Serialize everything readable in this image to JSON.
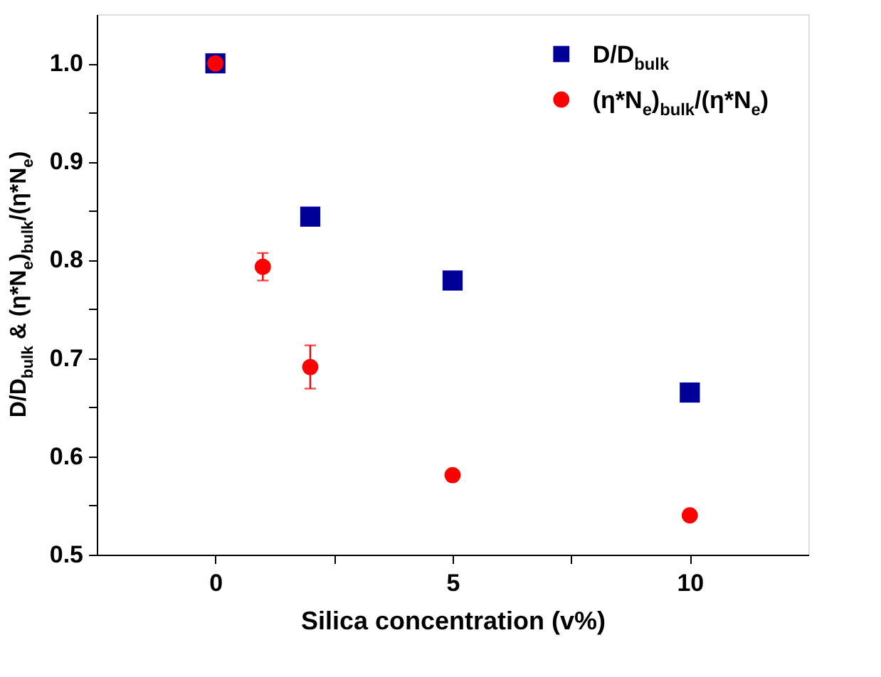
{
  "chart_data": {
    "type": "scatter",
    "xlabel": "Silica concentration (v%)",
    "ylabel": "D/D$_{bulk}$ & (η*N$_{e}$)$_{bulk}$/(η*N$_{e}$)",
    "xlim": [
      -2.5,
      12.5
    ],
    "xticks": [
      0,
      {
        "value": 2.5,
        "label": null
      },
      5,
      {
        "value": 7.5,
        "label": null
      },
      10
    ],
    "ylim": [
      0.5,
      1.05
    ],
    "yticks": [
      0.5,
      {
        "value": 0.55,
        "label": null
      },
      0.6,
      {
        "value": 0.65,
        "label": null
      },
      0.7,
      {
        "value": 0.75,
        "label": null
      },
      0.8,
      {
        "value": 0.85,
        "label": null
      },
      0.9,
      {
        "value": 0.95,
        "label": null
      },
      {
        "value": 1.0,
        "label": "1.0"
      }
    ],
    "grid": false,
    "legend": "top right",
    "series": [
      {
        "name": "D/D$_{bulk}$",
        "color": "#000099",
        "marker": "square",
        "x": [
          0,
          2,
          5,
          10
        ],
        "values": [
          1.0,
          0.844,
          0.779,
          0.665
        ]
      },
      {
        "name": "(η*N$_{e}$)$_{bulk}$/(η*N$_{e}$)",
        "color": "#ff0000",
        "marker": "circle",
        "x": [
          0,
          1,
          2,
          5,
          10
        ],
        "values": [
          1.0,
          0.793,
          0.691,
          0.581,
          0.54
        ],
        "errors": [
          null,
          0.014,
          0.022,
          null,
          null
        ]
      }
    ]
  }
}
